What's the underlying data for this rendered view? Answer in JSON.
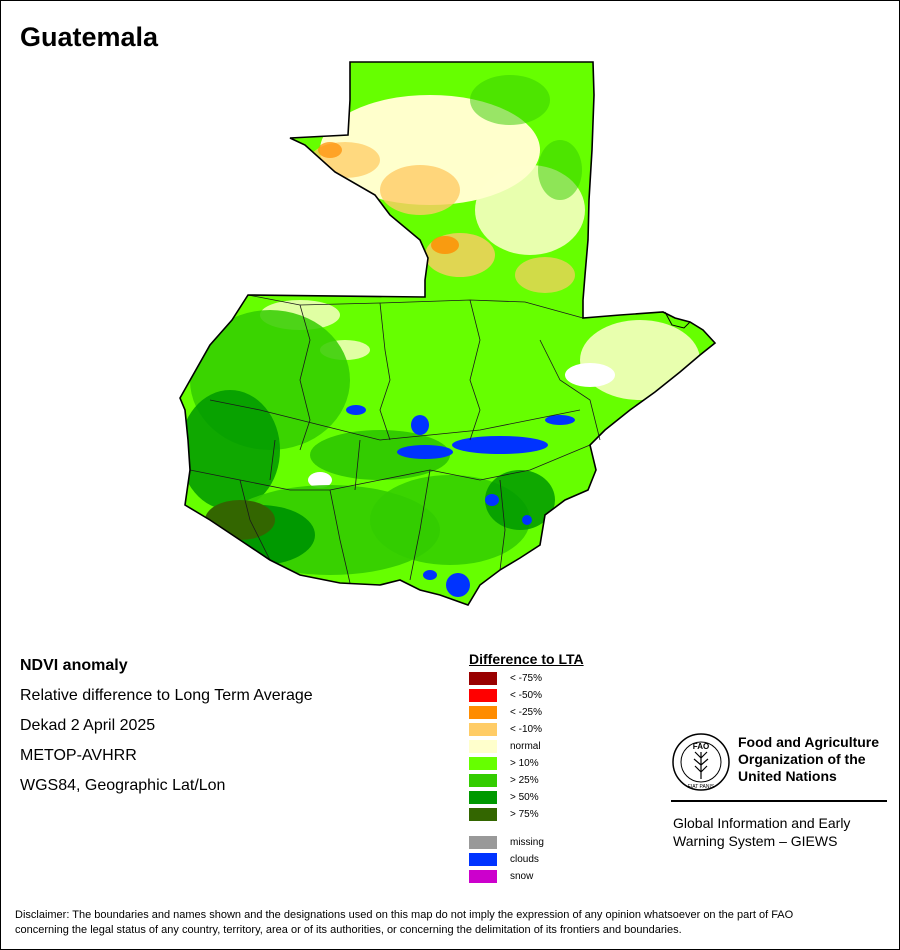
{
  "title": "Guatemala",
  "info": {
    "product": "NDVI anomaly",
    "description": "Relative difference to Long Term Average",
    "period": "Dekad 2 April 2025",
    "sensor": "METOP-AVHRR",
    "projection": "WGS84, Geographic Lat/Lon"
  },
  "legend": {
    "title": "Difference to LTA",
    "classes": [
      {
        "label": "< -75%",
        "color": "#990000"
      },
      {
        "label": "< -50%",
        "color": "#ff0000"
      },
      {
        "label": "< -25%",
        "color": "#ff8c00"
      },
      {
        "label": "< -10%",
        "color": "#ffcc66"
      },
      {
        "label": "normal",
        "color": "#ffffcc"
      },
      {
        "label": "> 10%",
        "color": "#66ff00"
      },
      {
        "label": "> 25%",
        "color": "#33cc00"
      },
      {
        "label": "> 50%",
        "color": "#009900"
      },
      {
        "label": "> 75%",
        "color": "#336600"
      }
    ],
    "extra": [
      {
        "label": "missing",
        "color": "#999999"
      },
      {
        "label": "clouds",
        "color": "#0033ff"
      },
      {
        "label": "snow",
        "color": "#cc00cc"
      }
    ]
  },
  "org": {
    "name_line1": "Food and Agriculture",
    "name_line2": "Organization of the",
    "name_line3": "United Nations",
    "logo_text": "FAO",
    "logo_motto": "FIAT PANIS",
    "system_line1": "Global Information and Early",
    "system_line2": "Warning System – GIEWS"
  },
  "disclaimer_line1": "Disclaimer: The boundaries and names shown and the designations used on this map do not imply the expression of any opinion whatsoever on the part of FAO",
  "disclaimer_line2": "concerning the legal status of any country, territory, area or of its authorities, or concerning the delimitation of its frontiers and boundaries."
}
